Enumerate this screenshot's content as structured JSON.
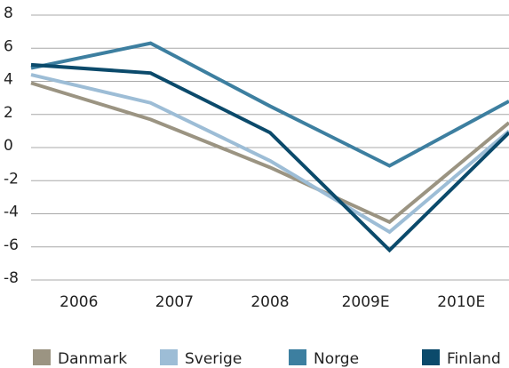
{
  "chart_data": {
    "type": "line",
    "categories": [
      "2006",
      "2007",
      "2008",
      "2009E",
      "2010E"
    ],
    "series": [
      {
        "name": "Danmark",
        "color": "#9b9482",
        "values": [
          3.9,
          1.7,
          -1.2,
          -4.5,
          1.5
        ]
      },
      {
        "name": "Sverige",
        "color": "#9dbdd6",
        "values": [
          4.4,
          2.7,
          -0.8,
          -5.1,
          1.0
        ]
      },
      {
        "name": "Norge",
        "color": "#3d7fa0",
        "values": [
          4.8,
          6.3,
          2.5,
          -1.1,
          2.8
        ]
      },
      {
        "name": "Finland",
        "color": "#0b4a6b",
        "values": [
          5.0,
          4.5,
          0.9,
          -6.2,
          0.9
        ]
      }
    ],
    "ylim": [
      -8,
      8
    ],
    "yticks": [
      -8,
      -6,
      -4,
      -2,
      0,
      2,
      4,
      6,
      8
    ],
    "grid": true,
    "legend": "bottom"
  }
}
